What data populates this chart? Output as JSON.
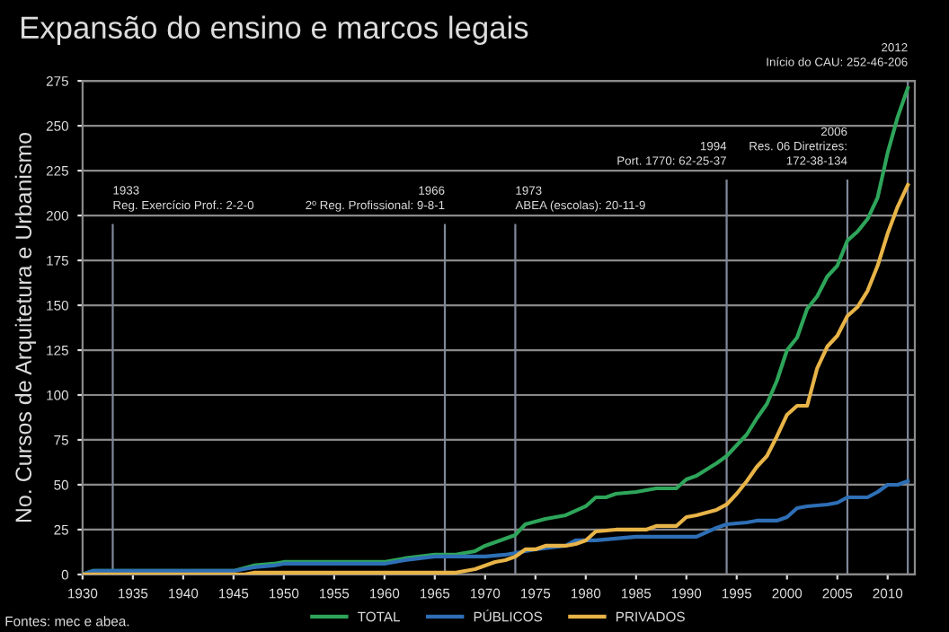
{
  "chart_data": {
    "type": "line",
    "title": "Expansão do ensino e marcos legais",
    "ylabel": "No. Cursos de Arquitetura e Urbanismo",
    "xlim": [
      1930,
      2012.7
    ],
    "xticks": [
      1930,
      1935,
      1940,
      1945,
      1950,
      1955,
      1960,
      1965,
      1970,
      1975,
      1980,
      1985,
      1990,
      1995,
      2000,
      2005,
      2010
    ],
    "ylim": [
      0,
      275
    ],
    "yticks": [
      0,
      25,
      50,
      75,
      100,
      125,
      150,
      175,
      200,
      225,
      250,
      275
    ],
    "grid": "y",
    "legend": "bottom",
    "marker": "none",
    "line_style": "solid",
    "series": [
      {
        "name": "TOTAL",
        "color": "#2ea55a",
        "x": [
          1930,
          1931,
          1945,
          1947,
          1949,
          1950,
          1960,
          1962,
          1965,
          1967,
          1969,
          1970,
          1972,
          1973,
          1974,
          1976,
          1978,
          1980,
          1981,
          1982,
          1983,
          1985,
          1987,
          1989,
          1990,
          1991,
          1993,
          1994,
          1995,
          1996,
          1997,
          1998,
          1999,
          2000,
          2001,
          2002,
          2003,
          2004,
          2005,
          2006,
          2007,
          2008,
          2009,
          2010,
          2011,
          2012
        ],
        "values": [
          0,
          2,
          2,
          5,
          6,
          7,
          7,
          9,
          11,
          11,
          13,
          16,
          20,
          22,
          28,
          31,
          33,
          38,
          43,
          43,
          45,
          46,
          48,
          48,
          53,
          55,
          62,
          66,
          72,
          78,
          87,
          95,
          108,
          125,
          132,
          148,
          155,
          166,
          172,
          186,
          191,
          198,
          210,
          235,
          255,
          271
        ]
      },
      {
        "name": "PÚBLICOS",
        "color": "#2e6fb5",
        "x": [
          1930,
          1931,
          1945,
          1946,
          1947,
          1949,
          1950,
          1960,
          1962,
          1965,
          1967,
          1970,
          1972,
          1974,
          1975,
          1978,
          1979,
          1981,
          1983,
          1985,
          1990,
          1991,
          1993,
          1994,
          1996,
          1997,
          1999,
          2000,
          2001,
          2002,
          2004,
          2005,
          2006,
          2008,
          2009,
          2010,
          2011,
          2012
        ],
        "values": [
          0,
          2,
          2,
          3,
          4,
          5,
          6,
          6,
          8,
          10,
          10,
          10,
          11,
          13,
          14,
          16,
          19,
          19,
          20,
          21,
          21,
          21,
          26,
          28,
          29,
          30,
          30,
          32,
          37,
          38,
          39,
          40,
          43,
          43,
          46,
          50,
          50,
          52
        ]
      },
      {
        "name": "PRIVADOS",
        "color": "#e8b448",
        "x": [
          1930,
          1946,
          1947,
          1967,
          1968,
          1969,
          1970,
          1971,
          1972,
          1973,
          1974,
          1975,
          1976,
          1978,
          1979,
          1980,
          1981,
          1983,
          1986,
          1987,
          1989,
          1990,
          1991,
          1993,
          1994,
          1995,
          1996,
          1997,
          1998,
          1999,
          2000,
          2001,
          2002,
          2003,
          2004,
          2005,
          2006,
          2007,
          2008,
          2009,
          2010,
          2011,
          2012
        ],
        "values": [
          0,
          0,
          1,
          1,
          2,
          3,
          5,
          7,
          8,
          10,
          14,
          14,
          16,
          16,
          17,
          19,
          24,
          25,
          25,
          27,
          27,
          32,
          33,
          36,
          39,
          45,
          52,
          60,
          66,
          77,
          89,
          94,
          94,
          115,
          127,
          133,
          144,
          149,
          158,
          172,
          190,
          205,
          217
        ]
      }
    ],
    "ref_lines": [
      {
        "axis": "x",
        "value": 1933,
        "label": "1933\nReg. Exercício Prof.: 2-2-0",
        "color": "#7f8799"
      },
      {
        "axis": "x",
        "value": 1966,
        "label": "1966\n2º Reg. Profissional: 9-8-1",
        "color": "#7f8799"
      },
      {
        "axis": "x",
        "value": 1973,
        "label": "1973\nABEA (escolas): 20-11-9",
        "color": "#7f8799"
      },
      {
        "axis": "x",
        "value": 1994,
        "label": "1994\nPort. 1770: 62-25-37",
        "color": "#7f8799"
      },
      {
        "axis": "x",
        "value": 2006,
        "label": "2006\nRes. 06 Diretrizes:\n172-38-134",
        "color": "#7f8799"
      },
      {
        "axis": "x",
        "value": 2012,
        "label": "2012\nInício do CAU: 252-46-206",
        "color": "#7f8799"
      }
    ],
    "annotations": [
      "Fontes: mec e abea."
    ]
  }
}
